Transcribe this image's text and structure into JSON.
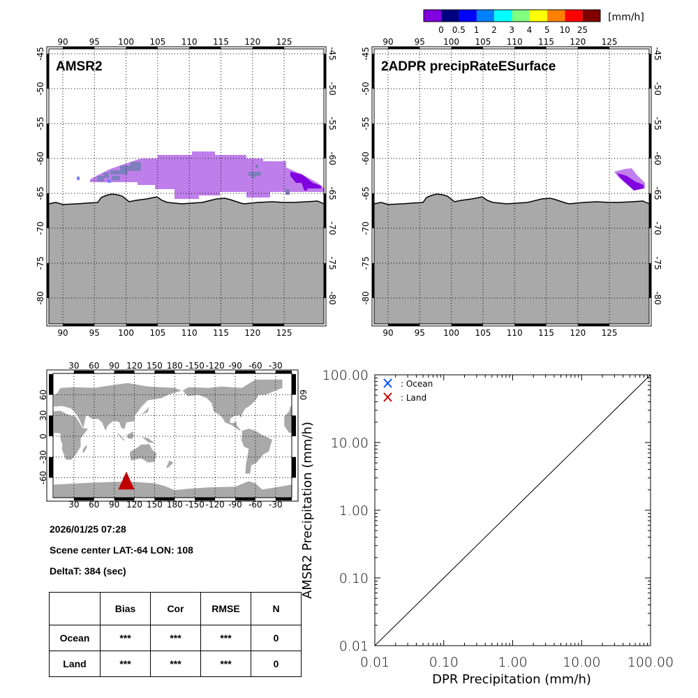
{
  "colorbar": {
    "colors": [
      "#8000e0",
      "#000080",
      "#0000ff",
      "#0080ff",
      "#00ffff",
      "#80ff80",
      "#ffff00",
      "#ff8000",
      "#ff0000",
      "#800000"
    ],
    "labels": [
      "0",
      "0.5",
      "1",
      "2",
      "3",
      "4",
      "5",
      "10",
      "25"
    ],
    "unit": "[mm/h]"
  },
  "maps": [
    {
      "title": "AMSR2"
    },
    {
      "title": "2ADPR precipRateESurface"
    }
  ],
  "regional_axes": {
    "lon_labels": [
      "90",
      "95",
      "100",
      "105",
      "110",
      "115",
      "120",
      "125"
    ],
    "lat_labels": [
      "-45",
      "-50",
      "-55",
      "-60",
      "-65",
      "-70",
      "-75",
      "-80"
    ]
  },
  "world_map": {
    "lon_labels": [
      "30",
      "60",
      "90",
      "120",
      "150",
      "180",
      "-150",
      "-120",
      "-90",
      "-60",
      "-30"
    ],
    "lat_labels": [
      "60",
      "30",
      "0",
      "-30",
      "-60"
    ],
    "marker_color": "#c00000"
  },
  "info": {
    "datetime": "2026/01/25 07:28",
    "scene_center": "Scene center LAT:-64   LON: 108",
    "delta_t": "DeltaT:  384 (sec)"
  },
  "stats_table": {
    "headers": [
      "",
      "Bias",
      "Cor",
      "RMSE",
      "N"
    ],
    "rows": [
      [
        "Ocean",
        "***",
        "***",
        "***",
        "0"
      ],
      [
        "Land",
        "***",
        "***",
        "***",
        "0"
      ]
    ]
  },
  "chart_data": {
    "type": "scatter",
    "xlabel": "DPR Precipitation (mm/h)",
    "ylabel": "AMSR2 Precipitation (mm/h)",
    "xscale": "log",
    "yscale": "log",
    "xlim": [
      0.01,
      100
    ],
    "ylim": [
      0.01,
      100
    ],
    "x_tick_labels": [
      "0.01",
      "0.10",
      "1.00",
      "10.00",
      "100.00"
    ],
    "y_tick_labels": [
      "0.01",
      "0.10",
      "1.00",
      "10.00",
      "100.00"
    ],
    "reference_line": "1:1 diagonal",
    "legend_placement": "top-left",
    "series": [
      {
        "name": ": Ocean",
        "color": "#0050ff",
        "marker": "x",
        "points": []
      },
      {
        "name": ": Land",
        "color": "#c00000",
        "marker": "x",
        "points": []
      }
    ]
  }
}
